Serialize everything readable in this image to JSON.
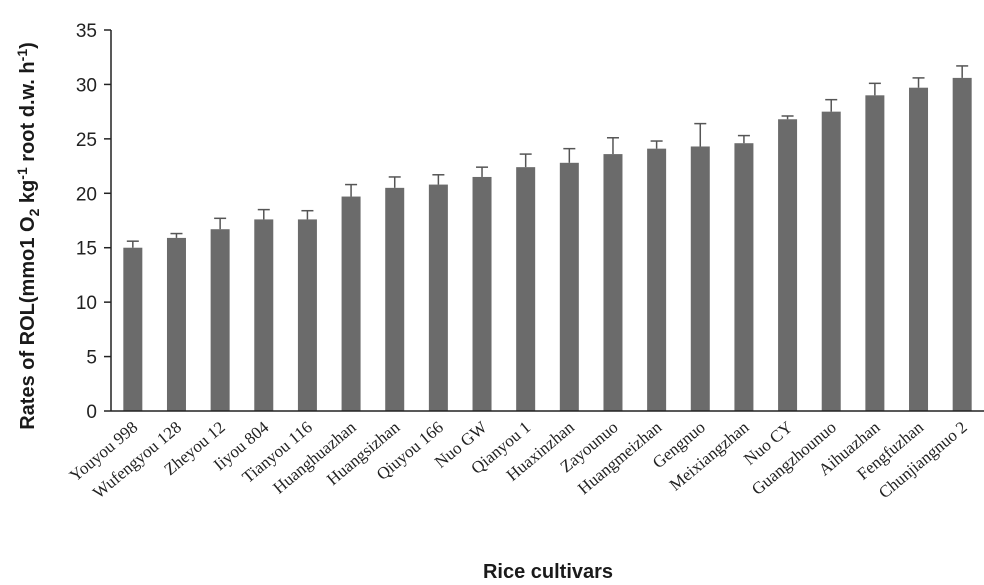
{
  "chart_data": {
    "type": "bar",
    "title": "",
    "xlabel": "Rice cultivars",
    "ylabel": {
      "prefix": "Rates of ROL(mmo1 O",
      "sub": "2",
      "mid1": " kg",
      "sup1": "-1",
      "mid2": " root d.w. h",
      "sup2": "-1",
      "suffix": ")"
    },
    "ylim": [
      0,
      35
    ],
    "yticks": [
      0,
      5,
      10,
      15,
      20,
      25,
      30,
      35
    ],
    "grid": false,
    "bar_color": "#6b6b6b",
    "categories": [
      "Youyou 998",
      "Wufengyou 128",
      "Zheyou 12",
      "Iiyou 804",
      "Tianyou 116",
      "Huanghuazhan",
      "Huangsizhan",
      "Qiuyou 166",
      "Nuo GW",
      "Qianyou 1",
      "Huaxinzhan",
      "Zayounuo",
      "Huangmeizhan",
      "Gengnuo",
      "Meixiangzhan",
      "Nuo CY",
      "Guangzhounuo",
      "Aihuazhan",
      "Fengfuzhan",
      "Chunjiangnuo 2"
    ],
    "values": [
      15.0,
      15.9,
      16.7,
      17.6,
      17.6,
      19.7,
      20.5,
      20.8,
      21.5,
      22.4,
      22.8,
      23.6,
      24.1,
      24.3,
      24.6,
      26.8,
      27.5,
      29.0,
      29.7,
      30.6
    ],
    "errors": [
      0.6,
      0.4,
      1.0,
      0.9,
      0.8,
      1.1,
      1.0,
      0.9,
      0.9,
      1.2,
      1.3,
      1.5,
      0.7,
      2.1,
      0.7,
      0.3,
      1.1,
      1.1,
      0.9,
      1.1
    ]
  }
}
